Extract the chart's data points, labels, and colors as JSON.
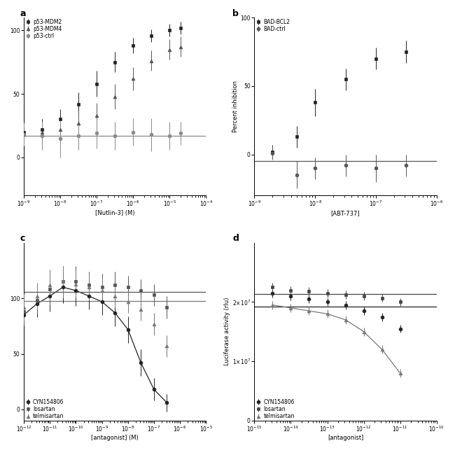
{
  "panel_a": {
    "xlabel": "[Nutlin-3] (M)",
    "ylabel": "",
    "xlim_log": [
      -9,
      -4
    ],
    "ylim": [
      -30,
      110
    ],
    "yticks": [
      0,
      50,
      100
    ],
    "series": [
      {
        "label": "p53-MDM2",
        "marker": "s",
        "x_log": [
          -9.0,
          -8.5,
          -8.0,
          -7.5,
          -7.0,
          -6.5,
          -6.0,
          -5.5,
          -5.0,
          -4.7
        ],
        "y": [
          20,
          22,
          30,
          42,
          58,
          75,
          88,
          96,
          100,
          102
        ],
        "yerr": [
          8,
          8,
          8,
          9,
          10,
          8,
          6,
          5,
          5,
          5
        ],
        "sigmoid": true,
        "ec50_guess": 1e-06,
        "hill_guess": 1.5,
        "color": "#222222"
      },
      {
        "label": "p53-MDM4",
        "marker": "^",
        "x_log": [
          -9.0,
          -8.5,
          -8.0,
          -7.5,
          -7.0,
          -6.5,
          -6.0,
          -5.5,
          -5.0,
          -4.7
        ],
        "y": [
          18,
          20,
          22,
          27,
          33,
          48,
          62,
          76,
          85,
          87
        ],
        "yerr": [
          9,
          9,
          9,
          10,
          10,
          10,
          9,
          8,
          8,
          8
        ],
        "sigmoid": true,
        "ec50_guess": 3e-06,
        "hill_guess": 1.2,
        "color": "#555555"
      },
      {
        "label": "p53-ctrl",
        "marker": "o",
        "x_log": [
          -9.0,
          -8.5,
          -8.0,
          -7.5,
          -7.0,
          -6.5,
          -6.0,
          -5.5,
          -5.0,
          -4.7
        ],
        "y": [
          18,
          17,
          15,
          17,
          19,
          17,
          20,
          18,
          17,
          19
        ],
        "yerr": [
          9,
          11,
          15,
          11,
          12,
          11,
          11,
          13,
          11,
          9
        ],
        "sigmoid": false,
        "flat_y": 17,
        "color": "#888888"
      }
    ]
  },
  "panel_b": {
    "xlabel": "[ABT-737]",
    "ylabel": "Percent inhibition",
    "xlim_log": [
      -9,
      -6
    ],
    "ylim": [
      -30,
      100
    ],
    "yticks": [
      0,
      50,
      100
    ],
    "series": [
      {
        "label": "BAD-BCL2",
        "marker": "s",
        "x_log": [
          -8.7,
          -8.3,
          -8.0,
          -7.5,
          -7.0,
          -6.5
        ],
        "y": [
          2,
          13,
          38,
          55,
          70,
          75
        ],
        "yerr": [
          5,
          8,
          10,
          8,
          8,
          8
        ],
        "sigmoid": true,
        "ec50_guess": 1e-07,
        "hill_guess": 1.2,
        "color": "#222222"
      },
      {
        "label": "BAD-ctrl",
        "marker": "o",
        "x_log": [
          -8.7,
          -8.3,
          -8.0,
          -7.5,
          -7.0,
          -6.5
        ],
        "y": [
          1,
          -15,
          -10,
          -8,
          -10,
          -8
        ],
        "yerr": [
          5,
          10,
          8,
          8,
          10,
          8
        ],
        "sigmoid": false,
        "flat_y": -5,
        "color": "#555555"
      }
    ]
  },
  "panel_c": {
    "xlabel": "[antagonist] (M)",
    "ylabel": "",
    "xlim_log": [
      -12,
      -5
    ],
    "ylim": [
      -10,
      150
    ],
    "yticks": [
      0,
      50,
      100
    ],
    "series": [
      {
        "label": "CYN154806",
        "marker": "o",
        "x_log": [
          -12.0,
          -11.5,
          -11.0,
          -10.5,
          -10.0,
          -9.5,
          -9.0,
          -8.5,
          -8.0,
          -7.5,
          -7.0,
          -6.5
        ],
        "y": [
          85,
          95,
          102,
          110,
          107,
          102,
          97,
          87,
          72,
          42,
          18,
          6
        ],
        "yerr": [
          10,
          12,
          14,
          14,
          14,
          12,
          12,
          12,
          12,
          12,
          10,
          8
        ],
        "inhibition": true,
        "color": "#222222"
      },
      {
        "label": "losartan",
        "marker": "s",
        "x_log": [
          -12.0,
          -11.5,
          -11.0,
          -10.5,
          -10.0,
          -9.5,
          -9.0,
          -8.5,
          -8.0,
          -7.5,
          -7.0,
          -6.5
        ],
        "y": [
          88,
          98,
          108,
          115,
          115,
          112,
          110,
          112,
          110,
          107,
          103,
          92
        ],
        "yerr": [
          12,
          12,
          14,
          14,
          14,
          12,
          12,
          12,
          10,
          10,
          10,
          10
        ],
        "inhibition": false,
        "color": "#555555"
      },
      {
        "label": "telmisartan",
        "marker": "^",
        "x_log": [
          -12.0,
          -11.5,
          -11.0,
          -10.5,
          -10.0,
          -9.5,
          -9.0,
          -8.5,
          -8.0,
          -7.5,
          -7.0,
          -6.5
        ],
        "y": [
          92,
          102,
          112,
          115,
          113,
          110,
          107,
          102,
          97,
          90,
          77,
          57
        ],
        "yerr": [
          12,
          12,
          14,
          14,
          12,
          12,
          12,
          10,
          10,
          10,
          10,
          10
        ],
        "inhibition": false,
        "color": "#777777"
      }
    ]
  },
  "panel_d": {
    "xlabel": "[antagonist]",
    "ylabel": "Luciferase activity (rlu)",
    "xlim_log": [
      -15,
      -10
    ],
    "ylim": [
      0,
      30000000.0
    ],
    "yticks": [
      0,
      10000000.0,
      20000000.0
    ],
    "series": [
      {
        "label": "CYN154806",
        "marker": "o",
        "x_log": [
          -14.5,
          -14.0,
          -13.5,
          -13.0,
          -12.5,
          -12.0,
          -11.5,
          -11.0
        ],
        "y": [
          21500000.0,
          21000000.0,
          20500000.0,
          20000000.0,
          19500000.0,
          18500000.0,
          17500000.0,
          15500000.0
        ],
        "yerr": [
          700000.0,
          700000.0,
          700000.0,
          700000.0,
          700000.0,
          700000.0,
          700000.0,
          700000.0
        ],
        "flat": true,
        "color": "#222222"
      },
      {
        "label": "losartan",
        "marker": "s",
        "x_log": [
          -14.5,
          -14.0,
          -13.5,
          -13.0,
          -12.5,
          -12.0,
          -11.5,
          -11.0
        ],
        "y": [
          22500000.0,
          22000000.0,
          21800000.0,
          21500000.0,
          21200000.0,
          21000000.0,
          20700000.0,
          20000000.0
        ],
        "yerr": [
          700000.0,
          700000.0,
          700000.0,
          700000.0,
          700000.0,
          700000.0,
          700000.0,
          700000.0
        ],
        "flat": true,
        "color": "#444444"
      },
      {
        "label": "telmisartan",
        "marker": "^",
        "x_log": [
          -14.5,
          -14.0,
          -13.5,
          -13.0,
          -12.5,
          -12.0,
          -11.5,
          -11.0
        ],
        "y": [
          19500000.0,
          19000000.0,
          18500000.0,
          18000000.0,
          17000000.0,
          15000000.0,
          12000000.0,
          8000000.0
        ],
        "yerr": [
          700000.0,
          700000.0,
          700000.0,
          700000.0,
          700000.0,
          700000.0,
          700000.0,
          700000.0
        ],
        "flat": false,
        "color": "#777777"
      }
    ]
  },
  "background_color": "#ffffff",
  "label_fontsize": 6,
  "tick_fontsize": 5.5,
  "marker_size": 3.5,
  "line_width": 0.9,
  "elinewidth": 0.7,
  "capsize": 0
}
